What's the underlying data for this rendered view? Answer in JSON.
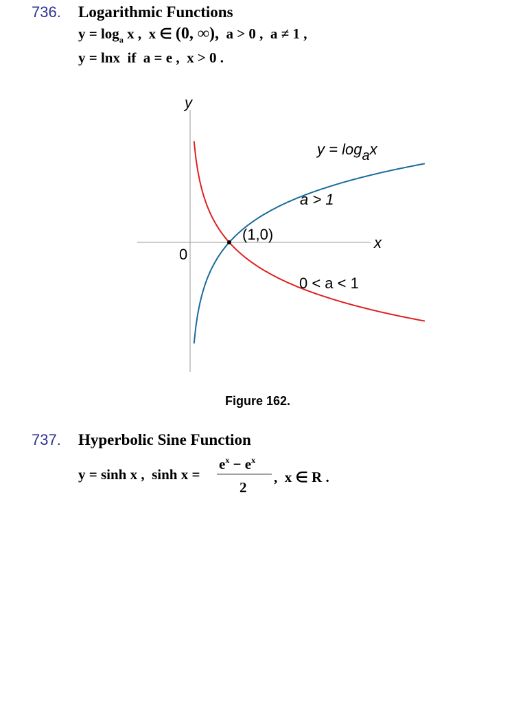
{
  "s736": {
    "number": "736.",
    "title": "Logarithmic Functions",
    "line1": {
      "y_eq": "y = log",
      "sub_a": "a",
      "x_part": " x ,  x ∈ ",
      "interval": "(0, ∞),",
      "rest": "  a > 0 ,  a ≠ 1 ,"
    },
    "line2": "y = lnx  if  a = e ,  x > 0 ."
  },
  "chart_data": {
    "type": "line",
    "title": "",
    "xlabel": "x",
    "ylabel": "y",
    "origin_label": "0",
    "point": {
      "x": 1,
      "y": 0,
      "label": "(1,0)"
    },
    "series": [
      {
        "name": "a > 1",
        "color": "#1a6b9a",
        "x": [
          0.1,
          0.3,
          0.6,
          1,
          2,
          3,
          4,
          5,
          6
        ],
        "values": [
          -2.3,
          -1.2,
          -0.51,
          0,
          0.69,
          1.1,
          1.39,
          1.61,
          1.79
        ]
      },
      {
        "name": "0 < a < 1",
        "color": "#e02020",
        "x": [
          0.1,
          0.3,
          0.6,
          1,
          2,
          3,
          4,
          5,
          6
        ],
        "values": [
          2.3,
          1.2,
          0.51,
          0,
          -0.69,
          -1.1,
          -1.39,
          -1.61,
          -1.79
        ]
      }
    ],
    "labels": {
      "curve_formula_prefix": "y = log",
      "curve_formula_sub": "a",
      "curve_formula_suffix": "x",
      "a_gt_1": "a > 1",
      "a_between": "0 < a < 1"
    },
    "caption": "Figure 162."
  },
  "s737": {
    "number": "737.",
    "title": "Hyperbolic Sine Function",
    "lhs": "y = sinh x ,  sinh x =",
    "numerator_e1": "e",
    "numerator_sup1": "x",
    "numerator_mid": " − e",
    "numerator_sup2": "x",
    "denominator": "2",
    "rhs": ",  x ∈ R ."
  },
  "colors": {
    "number": "#2e3192",
    "blue_curve": "#1a6b9a",
    "red_curve": "#e02020",
    "axis": "#999999"
  }
}
